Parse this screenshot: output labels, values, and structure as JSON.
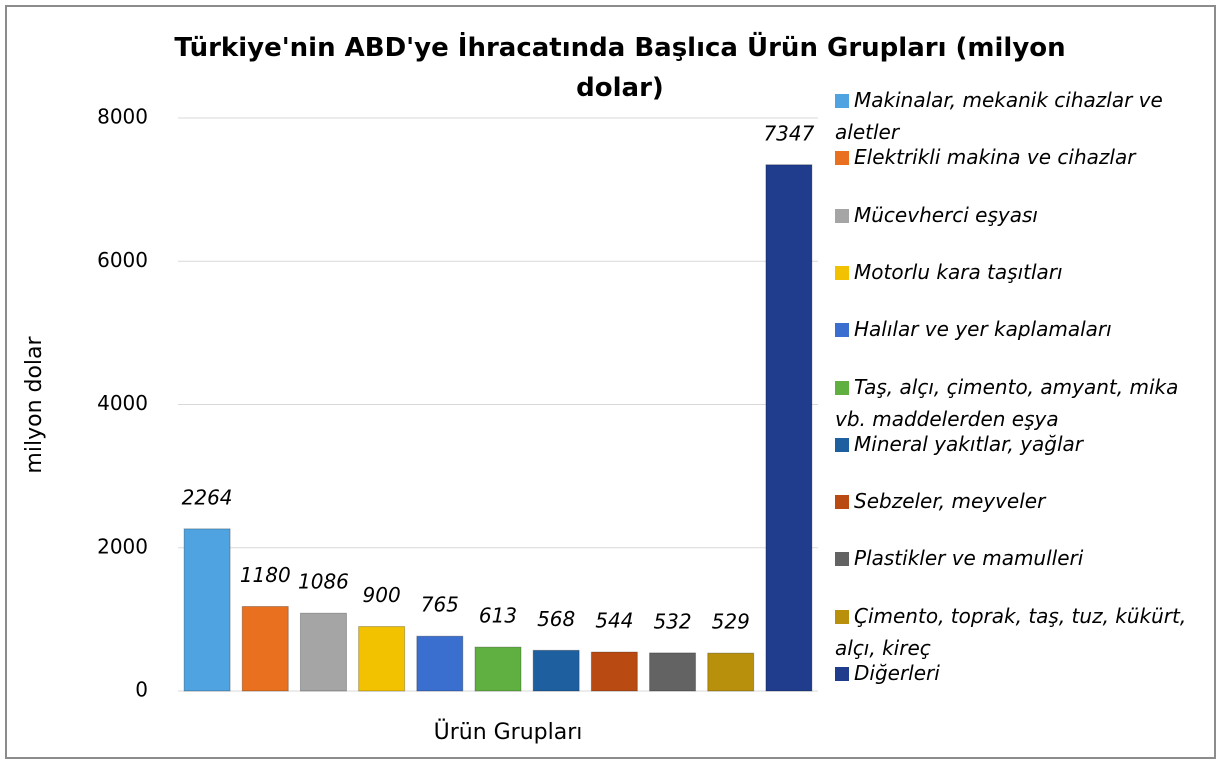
{
  "chart_data": {
    "type": "bar",
    "title": "Türkiye'nin ABD'ye İhracatında Başlıca Ürün Grupları  (milyon dolar)",
    "xlabel": "Ürün Grupları",
    "ylabel": "milyon dolar",
    "categories": [
      null
    ],
    "ylim": [
      0,
      8000
    ],
    "yticks": [
      0,
      2000,
      4000,
      6000,
      8000
    ],
    "grid": true,
    "legend": "right",
    "series": [
      {
        "name": "Makinalar, mekanik cihazlar ve aletler",
        "color": "#4fa3e0",
        "values": [
          2264
        ]
      },
      {
        "name": "Elektrikli makina ve cihazlar",
        "color": "#e8701f",
        "values": [
          1180
        ]
      },
      {
        "name": "Mücevherci eşyası",
        "color": "#a5a5a5",
        "values": [
          1086
        ]
      },
      {
        "name": "Motorlu kara taşıtları",
        "color": "#f2c200",
        "values": [
          900
        ]
      },
      {
        "name": "Halılar ve yer kaplamaları",
        "color": "#3a6fd0",
        "values": [
          765
        ]
      },
      {
        "name": "Taş, alçı, çimento, amyant, mika vb. maddelerden eşya",
        "color": "#5fb040",
        "values": [
          613
        ]
      },
      {
        "name": "Mineral yakıtlar, yağlar",
        "color": "#1e5fa0",
        "values": [
          568
        ]
      },
      {
        "name": "Sebzeler, meyveler",
        "color": "#b84a12",
        "values": [
          544
        ]
      },
      {
        "name": "Plastikler ve mamulleri",
        "color": "#636363",
        "values": [
          532
        ]
      },
      {
        "name": "Çimento, toprak, taş, tuz, kükürt, alçı, kireç",
        "color": "#b8900c",
        "values": [
          529
        ]
      },
      {
        "name": "Diğerleri",
        "color": "#1f3d8c",
        "values": [
          7347
        ]
      }
    ]
  }
}
